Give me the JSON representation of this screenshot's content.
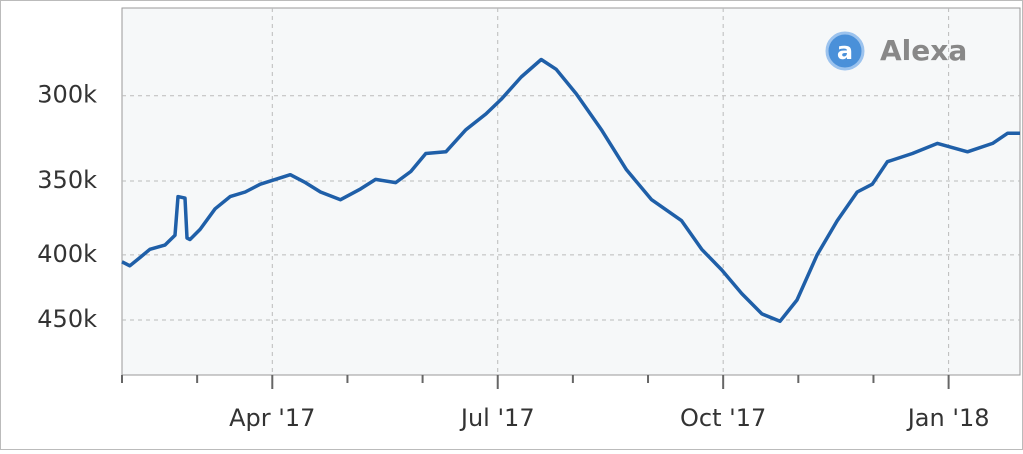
{
  "chart_data": {
    "type": "line",
    "logo": "Alexa",
    "x": [
      1.0,
      1.104,
      1.238,
      1.371,
      1.571,
      1.705,
      1.745,
      1.838,
      1.865,
      1.905,
      2.039,
      2.239,
      2.439,
      2.64,
      2.84,
      3.04,
      3.24,
      3.441,
      3.641,
      3.908,
      4.175,
      4.375,
      4.642,
      4.843,
      5.043,
      5.31,
      5.577,
      5.844,
      6.045,
      6.312,
      6.578,
      6.778,
      7.045,
      7.379,
      7.713,
      8.047,
      8.447,
      8.714,
      8.981,
      9.248,
      9.515,
      9.756,
      9.983,
      10.25,
      10.517,
      10.784,
      10.984,
      11.185,
      11.518,
      11.852,
      12.252,
      12.586,
      12.786,
      12.95
    ],
    "series": [
      {
        "name": "Alexa rank",
        "color": "#1f5fa8",
        "values": [
          405000,
          408000,
          402000,
          396000,
          393000,
          386000,
          360000,
          361000,
          388000,
          389000,
          382000,
          368000,
          360000,
          357000,
          352000,
          349000,
          346000,
          351000,
          357000,
          362000,
          355000,
          349000,
          351000,
          344000,
          333000,
          332000,
          319000,
          310000,
          302000,
          290000,
          281000,
          286000,
          299000,
          319000,
          343000,
          362000,
          376000,
          396000,
          411000,
          429000,
          445000,
          451000,
          434000,
          400000,
          376000,
          357000,
          352000,
          338000,
          333000,
          327000,
          332000,
          327000,
          321000,
          321000
        ]
      }
    ],
    "xlim": [
      1,
      12.95
    ],
    "xticks": [
      {
        "value": 3,
        "label": "Apr '17"
      },
      {
        "value": 6,
        "label": "Jul '17"
      },
      {
        "value": 9,
        "label": "Oct '17"
      },
      {
        "value": 12,
        "label": "Jan '18"
      }
    ],
    "xminor_ticks": [
      1,
      2,
      4,
      5,
      7,
      8,
      10,
      11
    ],
    "ylim": [
      256000,
      497000
    ],
    "y_inverted": true,
    "log_scale": true,
    "yticks": [
      {
        "value": 300000,
        "label": "300k"
      },
      {
        "value": 350000,
        "label": "350k"
      },
      {
        "value": 400000,
        "label": "400k"
      },
      {
        "value": 450000,
        "label": "450k"
      }
    ],
    "grid": true
  }
}
